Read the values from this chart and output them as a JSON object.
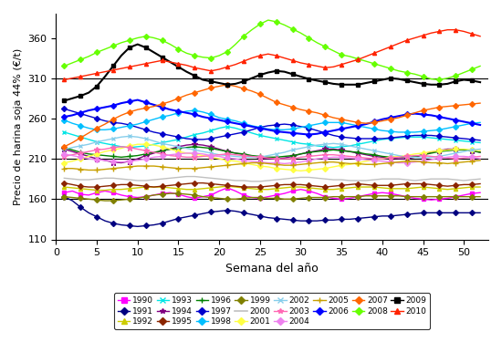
{
  "xlabel": "Semana del año",
  "ylabel": "Precio de harina soja 44% (€/t)",
  "xlim": [
    0,
    53
  ],
  "ylim": [
    110,
    390
  ],
  "yticks": [
    110,
    160,
    210,
    260,
    310,
    360
  ],
  "xticks": [
    0,
    5,
    10,
    15,
    20,
    25,
    30,
    35,
    40,
    45,
    50
  ],
  "hlines": [
    160,
    210,
    310
  ],
  "years": [
    "1990",
    "1991",
    "1992",
    "1993",
    "1994",
    "1995",
    "1996",
    "1997",
    "1998",
    "1999",
    "2000",
    "2001",
    "2002",
    "2003",
    "2004",
    "2005",
    "2006",
    "2007",
    "2008",
    "2009",
    "2010"
  ],
  "colors": {
    "1990": "#ff00ff",
    "1991": "#000080",
    "1992": "#cccc00",
    "1993": "#00e5e5",
    "1994": "#800080",
    "1995": "#8B2500",
    "1996": "#008000",
    "1997": "#0000cd",
    "1998": "#00bfff",
    "1999": "#808000",
    "2000": "#c0c0c0",
    "2001": "#ffff44",
    "2002": "#87ceeb",
    "2003": "#ff69b4",
    "2004": "#ee82ee",
    "2005": "#c8a000",
    "2006": "#0000ff",
    "2007": "#ff6600",
    "2008": "#66ff00",
    "2009": "#000000",
    "2010": "#ff2200"
  },
  "markers": {
    "1990": "s",
    "1991": "D",
    "1992": "^",
    "1993": "x",
    "1994": "*",
    "1995": "D",
    "1996": "+",
    "1997": "D",
    "1998": "D",
    "1999": "D",
    "2000": "None",
    "2001": "D",
    "2002": "x",
    "2003": "*",
    "2004": "D",
    "2005": "+",
    "2006": "D",
    "2007": "D",
    "2008": "D",
    "2009": "s",
    "2010": "^"
  },
  "data": {
    "1990": [
      168,
      170,
      166,
      165,
      168,
      170,
      168,
      165,
      163,
      162,
      163,
      165,
      167,
      168,
      166,
      163,
      161,
      163,
      165,
      170,
      174,
      170,
      165,
      162,
      161,
      163,
      165,
      167,
      170,
      172,
      170,
      167,
      163,
      161,
      160,
      161,
      163,
      165,
      167,
      168,
      167,
      165,
      163,
      161,
      160,
      159,
      160,
      161,
      163,
      165,
      167,
      168
    ],
    "1991": [
      163,
      158,
      150,
      143,
      138,
      133,
      130,
      128,
      127,
      126,
      127,
      128,
      130,
      133,
      136,
      138,
      140,
      142,
      144,
      145,
      146,
      145,
      143,
      141,
      139,
      137,
      136,
      135,
      134,
      133,
      133,
      133,
      134,
      134,
      135,
      135,
      136,
      137,
      138,
      139,
      139,
      140,
      141,
      142,
      143,
      143,
      143,
      143,
      143,
      143,
      143,
      143
    ],
    "1992": [
      175,
      174,
      173,
      172,
      171,
      171,
      172,
      172,
      173,
      174,
      175,
      175,
      175,
      174,
      173,
      172,
      172,
      173,
      174,
      175,
      176,
      175,
      174,
      173,
      172,
      172,
      173,
      174,
      175,
      175,
      174,
      173,
      172,
      172,
      173,
      174,
      175,
      175,
      175,
      174,
      173,
      173,
      173,
      174,
      175,
      174,
      173,
      172,
      173,
      174,
      175,
      175
    ],
    "1993": [
      243,
      240,
      237,
      234,
      231,
      229,
      227,
      225,
      224,
      225,
      226,
      228,
      230,
      232,
      234,
      237,
      240,
      242,
      245,
      248,
      250,
      248,
      245,
      242,
      239,
      237,
      235,
      233,
      231,
      229,
      228,
      226,
      225,
      224,
      225,
      226,
      228,
      230,
      232,
      234,
      235,
      236,
      237,
      237,
      237,
      236,
      235,
      234,
      233,
      232,
      231,
      230
    ],
    "1994": [
      222,
      219,
      216,
      213,
      210,
      208,
      206,
      205,
      207,
      210,
      214,
      217,
      220,
      222,
      225,
      227,
      228,
      227,
      225,
      222,
      219,
      217,
      215,
      213,
      211,
      210,
      210,
      211,
      213,
      216,
      218,
      220,
      222,
      222,
      221,
      219,
      217,
      215,
      213,
      212,
      211,
      210,
      210,
      212,
      215,
      218,
      220,
      222,
      222,
      221,
      220,
      218
    ],
    "1995": [
      180,
      178,
      176,
      175,
      175,
      176,
      177,
      178,
      178,
      177,
      176,
      175,
      176,
      177,
      178,
      179,
      180,
      180,
      179,
      178,
      177,
      176,
      175,
      175,
      175,
      176,
      177,
      178,
      178,
      178,
      177,
      176,
      175,
      176,
      177,
      178,
      179,
      178,
      177,
      177,
      177,
      178,
      179,
      179,
      179,
      178,
      177,
      176,
      177,
      178,
      178,
      179
    ],
    "1996": [
      224,
      221,
      218,
      216,
      215,
      214,
      213,
      212,
      213,
      214,
      216,
      218,
      220,
      222,
      223,
      224,
      225,
      224,
      223,
      221,
      219,
      217,
      216,
      214,
      213,
      212,
      212,
      213,
      214,
      216,
      218,
      219,
      220,
      221,
      220,
      219,
      218,
      216,
      215,
      213,
      212,
      212,
      212,
      213,
      215,
      217,
      219,
      220,
      221,
      221,
      220,
      218
    ],
    "1997": [
      272,
      269,
      266,
      263,
      260,
      257,
      255,
      254,
      252,
      249,
      246,
      243,
      241,
      239,
      237,
      235,
      234,
      234,
      235,
      237,
      239,
      241,
      243,
      246,
      249,
      251,
      252,
      253,
      252,
      250,
      248,
      245,
      242,
      239,
      237,
      236,
      235,
      235,
      235,
      235,
      236,
      237,
      238,
      239,
      239,
      239,
      238,
      237,
      236,
      235,
      234,
      233
    ],
    "1998": [
      258,
      254,
      251,
      248,
      246,
      246,
      247,
      249,
      251,
      253,
      256,
      259,
      262,
      264,
      267,
      269,
      270,
      268,
      265,
      261,
      259,
      257,
      254,
      251,
      249,
      247,
      246,
      246,
      247,
      249,
      251,
      253,
      255,
      255,
      255,
      253,
      251,
      249,
      247,
      245,
      244,
      243,
      243,
      243,
      244,
      245,
      246,
      248,
      250,
      252,
      254,
      255
    ],
    "1999": [
      163,
      162,
      161,
      160,
      159,
      158,
      158,
      159,
      160,
      161,
      163,
      165,
      166,
      167,
      167,
      166,
      165,
      163,
      162,
      161,
      160,
      160,
      161,
      162,
      162,
      161,
      161,
      160,
      160,
      161,
      162,
      162,
      162,
      163,
      163,
      163,
      163,
      164,
      164,
      164,
      164,
      164,
      163,
      163,
      163,
      163,
      163,
      163,
      163,
      163,
      163,
      163
    ],
    "2000": [
      186,
      185,
      184,
      184,
      185,
      186,
      186,
      185,
      184,
      183,
      183,
      184,
      185,
      186,
      187,
      188,
      188,
      187,
      186,
      185,
      184,
      183,
      183,
      182,
      182,
      183,
      184,
      185,
      186,
      187,
      187,
      186,
      185,
      184,
      184,
      183,
      183,
      183,
      184,
      185,
      185,
      185,
      184,
      183,
      184,
      185,
      185,
      185,
      184,
      183,
      184,
      185
    ],
    "2001": [
      205,
      207,
      210,
      213,
      216,
      219,
      221,
      223,
      226,
      228,
      228,
      227,
      225,
      222,
      219,
      217,
      216,
      214,
      212,
      210,
      208,
      207,
      205,
      203,
      201,
      200,
      198,
      197,
      196,
      195,
      196,
      197,
      198,
      200,
      202,
      203,
      205,
      207,
      209,
      210,
      212,
      213,
      214,
      216,
      217,
      219,
      220,
      221,
      222,
      222,
      221,
      220
    ],
    "2002": [
      222,
      224,
      226,
      228,
      231,
      233,
      235,
      237,
      238,
      237,
      235,
      232,
      229,
      227,
      225,
      223,
      221,
      219,
      217,
      215,
      214,
      213,
      212,
      212,
      212,
      214,
      216,
      218,
      221,
      223,
      225,
      227,
      228,
      229,
      228,
      226,
      224,
      222,
      220,
      218,
      216,
      214,
      212,
      212,
      211,
      212,
      213,
      215,
      217,
      219,
      221,
      222
    ],
    "2003": [
      213,
      215,
      217,
      219,
      221,
      222,
      224,
      225,
      224,
      222,
      220,
      218,
      216,
      214,
      213,
      212,
      212,
      213,
      214,
      215,
      216,
      215,
      214,
      213,
      212,
      211,
      210,
      210,
      210,
      212,
      213,
      214,
      215,
      215,
      214,
      213,
      212,
      211,
      210,
      210,
      211,
      212,
      213,
      214,
      214,
      213,
      212,
      211,
      210,
      211,
      212,
      213
    ],
    "2004": [
      216,
      214,
      212,
      210,
      209,
      208,
      207,
      206,
      207,
      208,
      210,
      212,
      213,
      215,
      216,
      217,
      217,
      216,
      214,
      213,
      211,
      210,
      208,
      207,
      206,
      205,
      205,
      204,
      205,
      206,
      208,
      210,
      211,
      212,
      212,
      211,
      210,
      209,
      208,
      207,
      206,
      205,
      205,
      206,
      207,
      209,
      211,
      212,
      213,
      213,
      212,
      210
    ],
    "2005": [
      198,
      198,
      197,
      196,
      196,
      197,
      198,
      199,
      200,
      201,
      201,
      201,
      200,
      199,
      198,
      198,
      198,
      199,
      200,
      201,
      202,
      203,
      204,
      205,
      205,
      204,
      203,
      202,
      202,
      203,
      204,
      205,
      206,
      206,
      205,
      204,
      204,
      203,
      203,
      204,
      205,
      206,
      207,
      207,
      206,
      205,
      205,
      204,
      205,
      206,
      207,
      208
    ],
    "2006": [
      262,
      264,
      267,
      270,
      272,
      274,
      276,
      279,
      281,
      283,
      280,
      277,
      274,
      271,
      269,
      267,
      265,
      262,
      260,
      258,
      256,
      254,
      252,
      250,
      248,
      246,
      244,
      243,
      242,
      241,
      240,
      241,
      243,
      245,
      247,
      249,
      251,
      253,
      256,
      259,
      261,
      263,
      265,
      266,
      265,
      264,
      262,
      260,
      258,
      256,
      254,
      252
    ],
    "2007": [
      225,
      230,
      236,
      242,
      248,
      253,
      259,
      264,
      268,
      271,
      273,
      275,
      278,
      281,
      285,
      289,
      292,
      295,
      298,
      300,
      302,
      300,
      297,
      294,
      290,
      285,
      280,
      277,
      274,
      271,
      269,
      267,
      264,
      261,
      259,
      257,
      255,
      254,
      255,
      257,
      259,
      261,
      264,
      267,
      270,
      272,
      274,
      275,
      276,
      277,
      278,
      279
    ],
    "2008": [
      325,
      329,
      333,
      337,
      342,
      346,
      350,
      354,
      357,
      360,
      362,
      360,
      357,
      352,
      346,
      341,
      338,
      336,
      335,
      338,
      343,
      352,
      362,
      370,
      377,
      382,
      380,
      376,
      371,
      366,
      360,
      354,
      349,
      344,
      339,
      337,
      334,
      331,
      328,
      325,
      322,
      319,
      317,
      315,
      312,
      309,
      308,
      310,
      313,
      317,
      321,
      325
    ],
    "2009": [
      282,
      285,
      288,
      292,
      300,
      312,
      325,
      338,
      348,
      352,
      348,
      342,
      336,
      330,
      324,
      318,
      313,
      308,
      306,
      304,
      302,
      303,
      306,
      310,
      314,
      317,
      319,
      318,
      315,
      312,
      309,
      307,
      305,
      303,
      302,
      302,
      302,
      304,
      306,
      308,
      310,
      309,
      307,
      305,
      303,
      302,
      302,
      303,
      306,
      308,
      307,
      305
    ],
    "2010": [
      308,
      310,
      312,
      314,
      316,
      318,
      320,
      322,
      324,
      326,
      328,
      330,
      332,
      330,
      328,
      326,
      323,
      321,
      319,
      321,
      324,
      327,
      331,
      335,
      338,
      340,
      338,
      335,
      332,
      329,
      327,
      325,
      323,
      324,
      327,
      330,
      333,
      337,
      341,
      345,
      349,
      353,
      357,
      360,
      363,
      366,
      368,
      370,
      370,
      368,
      365,
      362
    ]
  }
}
